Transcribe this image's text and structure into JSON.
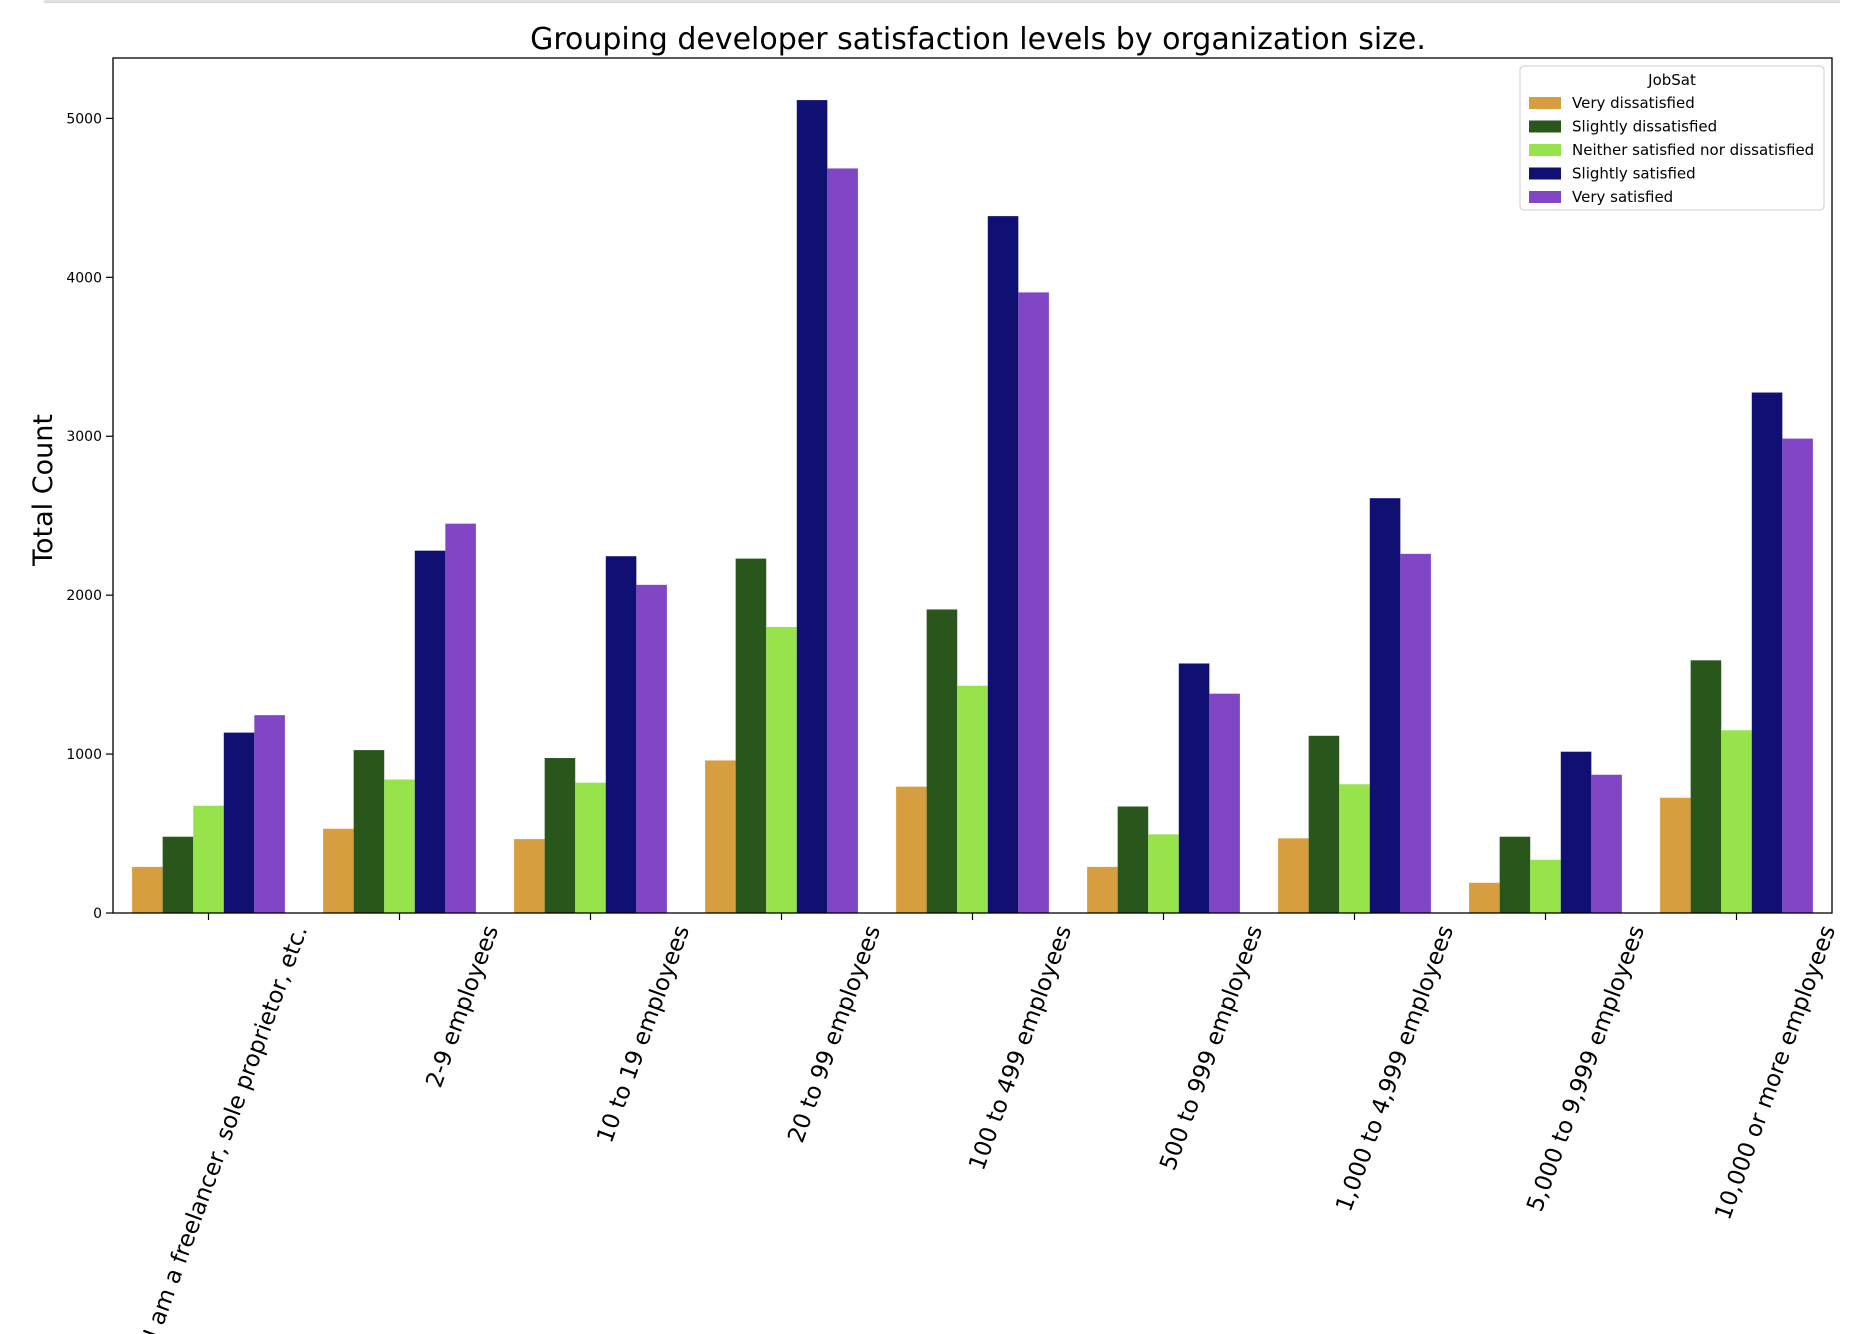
{
  "chart_data": {
    "type": "bar",
    "title": "Grouping developer satisfaction levels by organization size.",
    "xlabel": "",
    "ylabel": "Total Count",
    "ylim": [
      0,
      5380
    ],
    "yticks": [
      0,
      1000,
      2000,
      3000,
      4000,
      5000
    ],
    "grid": false,
    "legend": {
      "title": "JobSat",
      "placement": "top-right"
    },
    "categories": [
      "I am a freelancer, sole proprietor, etc.",
      "2-9 employees",
      "10 to 19 employees",
      "20 to 99 employees",
      "100 to 499 employees",
      "500 to 999 employees",
      "1,000 to 4,999 employees",
      "5,000 to 9,999 employees",
      "10,000 or more employees"
    ],
    "series": [
      {
        "name": "Very dissatisfied",
        "color": "#d69e3e",
        "values": [
          290,
          530,
          465,
          960,
          795,
          290,
          470,
          190,
          725
        ]
      },
      {
        "name": "Slightly dissatisfied",
        "color": "#28561b",
        "values": [
          480,
          1025,
          975,
          2230,
          1910,
          670,
          1115,
          480,
          1590
        ]
      },
      {
        "name": "Neither satisfied nor dissatisfied",
        "color": "#97e34b",
        "values": [
          675,
          840,
          820,
          1800,
          1430,
          495,
          810,
          335,
          1150
        ]
      },
      {
        "name": "Slightly satisfied",
        "color": "#100f72",
        "values": [
          1135,
          2280,
          2245,
          5115,
          4385,
          1570,
          2610,
          1015,
          3275
        ]
      },
      {
        "name": "Very satisfied",
        "color": "#8046c6",
        "values": [
          1245,
          2450,
          2065,
          4685,
          3905,
          1380,
          2260,
          870,
          2985
        ]
      }
    ]
  }
}
